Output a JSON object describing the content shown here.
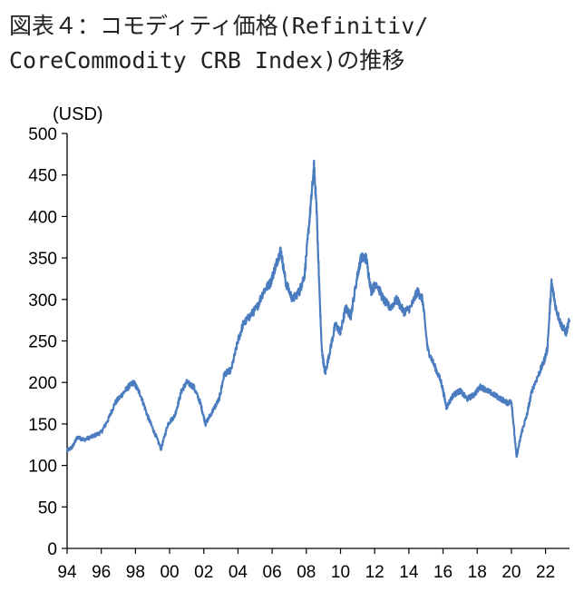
{
  "title": {
    "line1": "図表４：コモディティ価格(Refinitiv/",
    "line2": "CoreCommodity CRB Index)の推移"
  },
  "colors": {
    "series": "#4a7cbf",
    "axis": "#000000"
  },
  "chart_data": {
    "type": "line",
    "ylabel": "(USD)",
    "ylim": [
      0,
      500
    ],
    "yticks": [
      0,
      50,
      100,
      150,
      200,
      250,
      300,
      350,
      400,
      450,
      500
    ],
    "xlim": [
      1994,
      2023.4
    ],
    "xticks": [
      1994,
      1996,
      1998,
      2000,
      2002,
      2004,
      2006,
      2008,
      2010,
      2012,
      2014,
      2016,
      2018,
      2020,
      2022
    ],
    "xtick_labels": [
      "94",
      "96",
      "98",
      "00",
      "02",
      "04",
      "06",
      "08",
      "10",
      "12",
      "14",
      "16",
      "18",
      "20",
      "22"
    ],
    "series": [
      {
        "name": "Refinitiv/CoreCommodity CRB Index",
        "x": [
          1994.0,
          1994.3,
          1994.6,
          1995.0,
          1995.5,
          1996.0,
          1996.4,
          1996.8,
          1997.2,
          1997.6,
          1997.9,
          1998.3,
          1998.7,
          1999.1,
          1999.5,
          1999.9,
          2000.3,
          2000.7,
          2001.0,
          2001.4,
          2001.8,
          2002.1,
          2002.5,
          2002.9,
          2003.2,
          2003.6,
          2004.0,
          2004.3,
          2004.7,
          2005.1,
          2005.5,
          2005.9,
          2006.2,
          2006.5,
          2006.8,
          2007.2,
          2007.6,
          2007.9,
          2008.2,
          2008.45,
          2008.6,
          2008.75,
          2008.9,
          2009.1,
          2009.4,
          2009.7,
          2010.0,
          2010.3,
          2010.6,
          2011.0,
          2011.2,
          2011.5,
          2011.8,
          2012.1,
          2012.5,
          2012.9,
          2013.3,
          2013.7,
          2014.1,
          2014.5,
          2014.8,
          2015.1,
          2015.5,
          2015.9,
          2016.2,
          2016.6,
          2017.0,
          2017.4,
          2017.8,
          2018.2,
          2018.6,
          2019.0,
          2019.4,
          2019.8,
          2020.0,
          2020.3,
          2020.6,
          2020.9,
          2021.2,
          2021.6,
          2021.9,
          2022.1,
          2022.35,
          2022.6,
          2022.9,
          2023.2,
          2023.4
        ],
        "values": [
          118,
          122,
          134,
          131,
          135,
          140,
          155,
          175,
          185,
          195,
          200,
          185,
          160,
          140,
          120,
          150,
          160,
          190,
          200,
          195,
          175,
          150,
          165,
          180,
          210,
          215,
          250,
          270,
          280,
          290,
          310,
          320,
          340,
          360,
          320,
          300,
          310,
          330,
          400,
          460,
          410,
          320,
          240,
          210,
          240,
          270,
          260,
          290,
          280,
          330,
          350,
          350,
          310,
          320,
          300,
          290,
          300,
          285,
          290,
          310,
          300,
          240,
          220,
          200,
          170,
          185,
          190,
          180,
          185,
          195,
          190,
          185,
          180,
          175,
          178,
          110,
          140,
          160,
          190,
          210,
          225,
          240,
          320,
          290,
          270,
          260,
          275
        ]
      }
    ]
  }
}
